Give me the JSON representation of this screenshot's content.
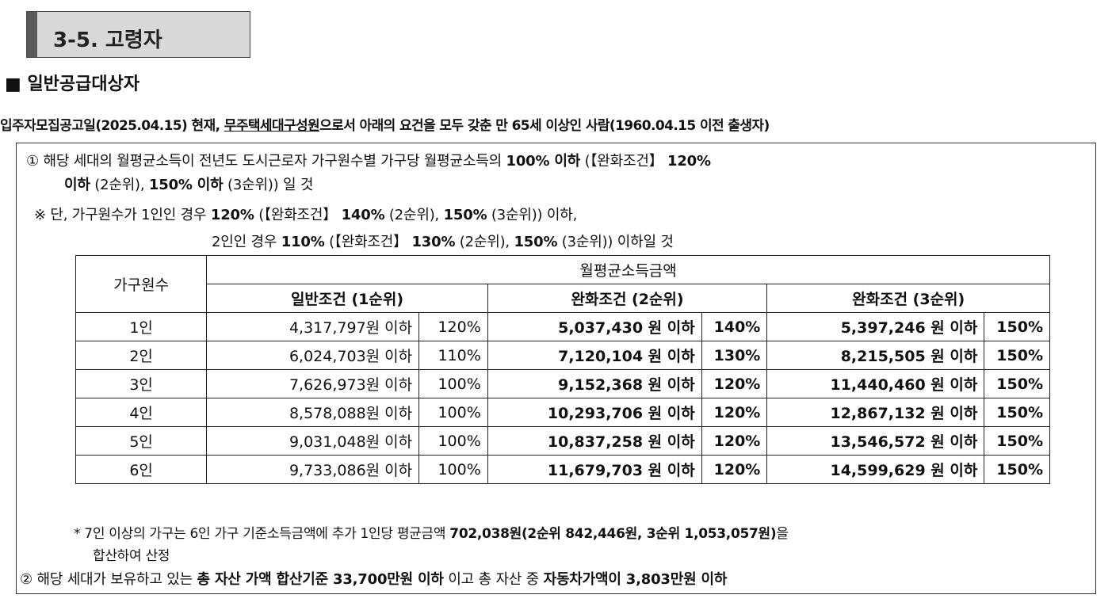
{
  "section": {
    "title": "3-5. 고령자"
  },
  "subheading": "■ 일반공급대상자",
  "intro": {
    "part1": "입주자모집공고일(2025.04.15) 현재, ",
    "underlined": "무주택세대구성원",
    "part2": "으로서 아래의 요건을 모두 갖춘 만 65세 이상인 사람(1960.04.15 이전 출생자)"
  },
  "cond1": {
    "a": "① 해당 세대의 월평균소득이 전년도 도시근로자 가구원수별 가구당 월평균소득의 ",
    "b": "100% 이하",
    "c": " (【완화조건】 ",
    "d": "120%",
    "e": "이하",
    "f": " (2순위), ",
    "g": "150% 이하",
    "h": " (3순위)) 일 것"
  },
  "note1": {
    "a": "※ 단, 가구원수가 1인인 경우 ",
    "b": "120%",
    "c": " (【완화조건】 ",
    "d": "140%",
    "e": " (2순위), ",
    "f": "150%",
    "g": " (3순위)) 이하,"
  },
  "note2": {
    "a": "2인인 경우 ",
    "b": "110%",
    "c": " (【완화조건】 ",
    "d": "130%",
    "e": " (2순위), ",
    "f": "150%",
    "g": " (3순위)) 이하일 것"
  },
  "table": {
    "col_household": "가구원수",
    "col_income": "월평균소득금액",
    "col_general": "일반조건 (1순위)",
    "col_relax2": "완화조건 (2순위)",
    "col_relax3": "완화조건 (3순위)",
    "rows": [
      {
        "size": "1인",
        "g_amt": "4,317,797원 이하",
        "g_pct": "120%",
        "r2_amt": "5,037,430 원 이하",
        "r2_pct": "140%",
        "r3_amt": "5,397,246 원 이하",
        "r3_pct": "150%"
      },
      {
        "size": "2인",
        "g_amt": "6,024,703원 이하",
        "g_pct": "110%",
        "r2_amt": "7,120,104 원 이하",
        "r2_pct": "130%",
        "r3_amt": "8,215,505 원 이하",
        "r3_pct": "150%"
      },
      {
        "size": "3인",
        "g_amt": "7,626,973원 이하",
        "g_pct": "100%",
        "r2_amt": "9,152,368 원 이하",
        "r2_pct": "120%",
        "r3_amt": "11,440,460 원 이하",
        "r3_pct": "150%"
      },
      {
        "size": "4인",
        "g_amt": "8,578,088원 이하",
        "g_pct": "100%",
        "r2_amt": "10,293,706 원 이하",
        "r2_pct": "120%",
        "r3_amt": "12,867,132 원 이하",
        "r3_pct": "150%"
      },
      {
        "size": "5인",
        "g_amt": "9,031,048원 이하",
        "g_pct": "100%",
        "r2_amt": "10,837,258 원 이하",
        "r2_pct": "120%",
        "r3_amt": "13,546,572 원 이하",
        "r3_pct": "150%"
      },
      {
        "size": "6인",
        "g_amt": "9,733,086원 이하",
        "g_pct": "100%",
        "r2_amt": "11,679,703 원 이하",
        "r2_pct": "120%",
        "r3_amt": "14,599,629 원 이하",
        "r3_pct": "150%"
      }
    ]
  },
  "footnote": {
    "a": "* 7인 이상의 가구는 6인 가구 기준소득금액에 추가 1인당 평균금액 ",
    "b": "702,038원(2순위 842,446원, 3순위 1,053,057원)",
    "c": "을",
    "d": "합산하여 산정"
  },
  "cond2": {
    "a": "② 해당 세대가 보유하고 있는 ",
    "b": "총 자산 가액 합산기준 33,700만원 이하",
    "c": " 이고 총 자산 중 ",
    "d": "자동차가액이 3,803만원 이하"
  }
}
